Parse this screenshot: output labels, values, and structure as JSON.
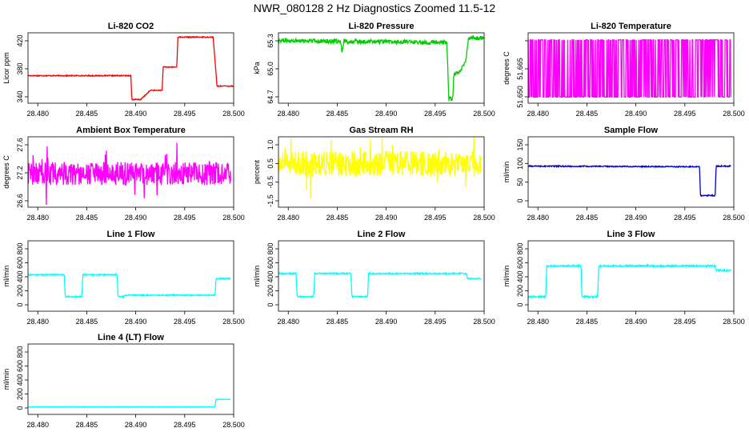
{
  "main_title": "NWR_080128  2 Hz Diagnostics Zoomed 11.5-12",
  "chart_data": [
    {
      "type": "line",
      "title": "Li-820 CO2",
      "ylabel": "Licor ppm",
      "color": "#ff0000",
      "xlim": [
        28.479,
        28.5
      ],
      "ylim": [
        330,
        445
      ],
      "xticks": [
        "28.480",
        "28.485",
        "28.490",
        "28.495",
        "28.500"
      ],
      "yticks": [
        "340",
        "380",
        "420"
      ],
      "series": {
        "style": "step",
        "noise": 0.8,
        "points": [
          [
            28.479,
            375
          ],
          [
            28.4895,
            375
          ],
          [
            28.4896,
            336
          ],
          [
            28.4905,
            336
          ],
          [
            28.4915,
            351
          ],
          [
            28.4927,
            351
          ],
          [
            28.4928,
            389
          ],
          [
            28.4942,
            389
          ],
          [
            28.4943,
            438
          ],
          [
            28.4979,
            438
          ],
          [
            28.4983,
            358
          ],
          [
            28.5,
            358
          ]
        ]
      }
    },
    {
      "type": "line",
      "title": "Li-820 Pressure",
      "ylabel": "kPa",
      "color": "#00cc00",
      "xlim": [
        28.479,
        28.5
      ],
      "ylim": [
        64.68,
        65.34
      ],
      "xticks": [
        "28.480",
        "28.485",
        "28.490",
        "28.495",
        "28.500"
      ],
      "yticks": [
        "64.7",
        "65.0",
        "65.3"
      ],
      "series": {
        "style": "step",
        "noise": 0.02,
        "points": [
          [
            28.479,
            65.27
          ],
          [
            28.4853,
            65.26
          ],
          [
            28.4855,
            65.15
          ],
          [
            28.4857,
            65.26
          ],
          [
            28.4962,
            65.25
          ],
          [
            28.4964,
            64.72
          ],
          [
            28.4968,
            64.72
          ],
          [
            28.4969,
            64.95
          ],
          [
            28.4975,
            64.98
          ],
          [
            28.4981,
            65.06
          ],
          [
            28.4984,
            65.29
          ],
          [
            28.5,
            65.29
          ]
        ]
      }
    },
    {
      "type": "line",
      "title": "Li-820 Temperature",
      "ylabel": "degrees C",
      "color": "#ff00ff",
      "xlim": [
        28.479,
        28.5
      ],
      "ylim": [
        51.648,
        51.673
      ],
      "xticks": [
        "28.480",
        "28.485",
        "28.490",
        "28.495",
        "28.500"
      ],
      "yticks": [
        "51.650",
        "51.665",
        ""
      ],
      "series": {
        "style": "binary",
        "low": 51.6502,
        "high": 51.6705,
        "density": 0.55
      }
    },
    {
      "type": "line",
      "title": "Ambient Box Temperature",
      "ylabel": "degrees C",
      "color": "#ff00ff",
      "xlim": [
        28.479,
        28.5
      ],
      "ylim": [
        26.56,
        27.9
      ],
      "xticks": [
        "28.480",
        "28.485",
        "28.490",
        "28.495",
        "28.500"
      ],
      "yticks": [
        "26.6",
        "27.2",
        "27.6"
      ],
      "series": {
        "style": "noise",
        "center": 27.2,
        "amp": 0.22,
        "spike": 0.5
      }
    },
    {
      "type": "line",
      "title": "Gas Stream RH",
      "ylabel": "percent",
      "color": "#ffff00",
      "xlim": [
        28.479,
        28.5
      ],
      "ylim": [
        -1.75,
        1.25
      ],
      "xticks": [
        "28.480",
        "28.485",
        "28.490",
        "28.495",
        "28.500"
      ],
      "yticks": [
        "-1.5",
        "-0.5",
        "0.5",
        "1.0"
      ],
      "series": {
        "style": "noise",
        "center": 0.1,
        "amp": 0.55,
        "spike": 1.2
      }
    },
    {
      "type": "line",
      "title": "Sample Flow",
      "ylabel": "ml/min",
      "color": "#0000cc",
      "xlim": [
        28.479,
        28.5
      ],
      "ylim": [
        -40,
        200
      ],
      "xticks": [
        "28.480",
        "28.485",
        "28.490",
        "28.495",
        "28.500"
      ],
      "yticks": [
        "0",
        "50",
        "100",
        "150"
      ],
      "series": {
        "style": "step",
        "noise": 2,
        "points": [
          [
            28.479,
            100
          ],
          [
            28.4965,
            98
          ],
          [
            28.4966,
            0
          ],
          [
            28.4981,
            0
          ],
          [
            28.4982,
            100
          ],
          [
            28.4997,
            100
          ]
        ]
      }
    },
    {
      "type": "line",
      "title": "Line 1 Flow",
      "ylabel": "ml/min",
      "color": "#00ffff",
      "xlim": [
        28.479,
        28.5
      ],
      "ylim": [
        -120,
        1000
      ],
      "xticks": [
        "28.480",
        "28.485",
        "28.490",
        "28.495",
        "28.500"
      ],
      "yticks": [
        "0",
        "200",
        "400",
        "600",
        "800"
      ],
      "series": {
        "style": "step",
        "noise": 10,
        "points": [
          [
            28.479,
            460
          ],
          [
            28.4827,
            460
          ],
          [
            28.4828,
            110
          ],
          [
            28.4845,
            110
          ],
          [
            28.4846,
            460
          ],
          [
            28.4881,
            460
          ],
          [
            28.4882,
            110
          ],
          [
            28.4888,
            110
          ],
          [
            28.4889,
            135
          ],
          [
            28.4981,
            135
          ],
          [
            28.4982,
            400
          ],
          [
            28.4997,
            400
          ]
        ]
      }
    },
    {
      "type": "line",
      "title": "Line 2 Flow",
      "ylabel": "ml/min",
      "color": "#00ffff",
      "xlim": [
        28.479,
        28.5
      ],
      "ylim": [
        -120,
        1000
      ],
      "xticks": [
        "28.480",
        "28.485",
        "28.490",
        "28.495",
        "28.500"
      ],
      "yticks": [
        "0",
        "200",
        "400",
        "600",
        "800"
      ],
      "series": {
        "style": "step",
        "noise": 10,
        "points": [
          [
            28.479,
            480
          ],
          [
            28.4808,
            480
          ],
          [
            28.4809,
            110
          ],
          [
            28.4826,
            110
          ],
          [
            28.4827,
            480
          ],
          [
            28.4864,
            480
          ],
          [
            28.4865,
            110
          ],
          [
            28.4881,
            110
          ],
          [
            28.4882,
            480
          ],
          [
            28.4982,
            480
          ],
          [
            28.4983,
            400
          ],
          [
            28.4997,
            400
          ]
        ]
      }
    },
    {
      "type": "line",
      "title": "Line 3 Flow",
      "ylabel": "ml/min",
      "color": "#00ffff",
      "xlim": [
        28.479,
        28.5
      ],
      "ylim": [
        -120,
        1000
      ],
      "xticks": [
        "28.480",
        "28.485",
        "28.490",
        "28.495",
        "28.500"
      ],
      "yticks": [
        "0",
        "200",
        "400",
        "600",
        "800"
      ],
      "series": {
        "style": "step",
        "noise": 14,
        "points": [
          [
            28.479,
            110
          ],
          [
            28.4808,
            110
          ],
          [
            28.4809,
            600
          ],
          [
            28.4844,
            600
          ],
          [
            28.4845,
            110
          ],
          [
            28.4861,
            110
          ],
          [
            28.4862,
            600
          ],
          [
            28.4981,
            600
          ],
          [
            28.4982,
            530
          ],
          [
            28.4997,
            530
          ]
        ]
      }
    },
    {
      "type": "line",
      "title": "Line 4 (LT) Flow",
      "ylabel": "ml/min",
      "color": "#00ffff",
      "xlim": [
        28.479,
        28.5
      ],
      "ylim": [
        -120,
        1000
      ],
      "xticks": [
        "28.480",
        "28.485",
        "28.490",
        "28.495",
        "28.500"
      ],
      "yticks": [
        "0",
        "200",
        "400",
        "600",
        "800"
      ],
      "series": {
        "style": "step",
        "noise": 3,
        "points": [
          [
            28.479,
            0
          ],
          [
            28.4981,
            0
          ],
          [
            28.4982,
            120
          ],
          [
            28.4997,
            120
          ]
        ]
      }
    }
  ]
}
